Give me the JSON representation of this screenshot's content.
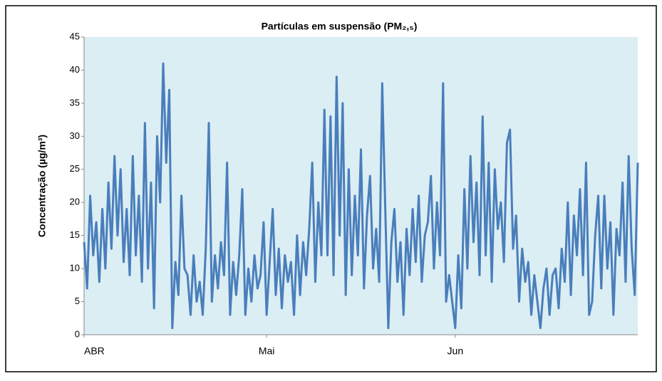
{
  "chart_data": {
    "type": "line",
    "title": "Partículas em suspensão (PM₂,₅)",
    "ylabel": "Concentração (µg/m³)",
    "color": "#4a7ebb",
    "background": "#dbeef4",
    "grid": false,
    "xlim": [
      0,
      91
    ],
    "xticks": [
      {
        "value": 0,
        "label": "ABR"
      },
      {
        "value": 30,
        "label": "Mai"
      },
      {
        "value": 61,
        "label": "Jun"
      }
    ],
    "ylim": [
      0,
      45
    ],
    "yticks": [
      0,
      5,
      10,
      15,
      20,
      25,
      30,
      35,
      40,
      45
    ],
    "x": [
      0,
      0.5,
      1,
      1.5,
      2,
      2.5,
      3,
      3.5,
      4,
      4.5,
      5,
      5.5,
      6,
      6.5,
      7,
      7.5,
      8,
      8.5,
      9,
      9.5,
      10,
      10.5,
      11,
      11.5,
      12,
      12.5,
      13,
      13.5,
      14,
      14.5,
      15,
      15.5,
      16,
      16.5,
      17,
      17.5,
      18,
      18.5,
      19,
      19.5,
      20,
      20.5,
      21,
      21.5,
      22,
      22.5,
      23,
      23.5,
      24,
      24.5,
      25,
      25.5,
      26,
      26.5,
      27,
      27.5,
      28,
      28.5,
      29,
      29.5,
      30,
      30.5,
      31,
      31.5,
      32,
      32.5,
      33,
      33.5,
      34,
      34.5,
      35,
      35.5,
      36,
      36.5,
      37,
      37.5,
      38,
      38.5,
      39,
      39.5,
      40,
      40.5,
      41,
      41.5,
      42,
      42.5,
      43,
      43.5,
      44,
      44.5,
      45,
      45.5,
      46,
      46.5,
      47,
      47.5,
      48,
      48.5,
      49,
      49.5,
      50,
      50.5,
      51,
      51.5,
      52,
      52.5,
      53,
      53.5,
      54,
      54.5,
      55,
      55.5,
      56,
      56.5,
      57,
      57.5,
      58,
      58.5,
      59,
      59.5,
      60,
      60.5,
      61,
      61.5,
      62,
      62.5,
      63,
      63.5,
      64,
      64.5,
      65,
      65.5,
      66,
      66.5,
      67,
      67.5,
      68,
      68.5,
      69,
      69.5,
      70,
      70.5,
      71,
      71.5,
      72,
      72.5,
      73,
      73.5,
      74,
      74.5,
      75,
      75.5,
      76,
      76.5,
      77,
      77.5,
      78,
      78.5,
      79,
      79.5,
      80,
      80.5,
      81,
      81.5,
      82,
      82.5,
      83,
      83.5,
      84,
      84.5,
      85,
      85.5,
      86,
      86.5,
      87,
      87.5,
      88,
      88.5,
      89,
      89.5,
      90,
      90.5,
      91
    ],
    "values": [
      14,
      7,
      21,
      12,
      17,
      8,
      19,
      10,
      23,
      13,
      27,
      15,
      25,
      11,
      19,
      9,
      27,
      12,
      21,
      8,
      32,
      10,
      23,
      4,
      30,
      20,
      41,
      26,
      37,
      1,
      11,
      6,
      21,
      10,
      9,
      3,
      12,
      5,
      8,
      3,
      13,
      32,
      5,
      12,
      7,
      14,
      9,
      26,
      3,
      11,
      6,
      12,
      22,
      3,
      10,
      5,
      12,
      7,
      9,
      17,
      3,
      11,
      19,
      6,
      13,
      4,
      12,
      8,
      11,
      3,
      15,
      6,
      14,
      9,
      16,
      26,
      8,
      20,
      12,
      34,
      12,
      33,
      9,
      39,
      15,
      35,
      6,
      25,
      9,
      21,
      12,
      28,
      7,
      18,
      24,
      10,
      16,
      8,
      38,
      19,
      1,
      14,
      19,
      8,
      14,
      3,
      16,
      9,
      19,
      11,
      21,
      8,
      15,
      17,
      24,
      10,
      20,
      12,
      38,
      5,
      9,
      5,
      1,
      12,
      4,
      22,
      10,
      27,
      14,
      23,
      9,
      33,
      12,
      26,
      8,
      25,
      16,
      20,
      11,
      29,
      31,
      13,
      18,
      5,
      13,
      8,
      11,
      3,
      9,
      5,
      1,
      7,
      10,
      3,
      9,
      10,
      4,
      13,
      8,
      20,
      6,
      18,
      12,
      22,
      9,
      26,
      3,
      5,
      15,
      21,
      7,
      21,
      10,
      17,
      3,
      16,
      12,
      23,
      8,
      27,
      13,
      6,
      26
    ]
  }
}
